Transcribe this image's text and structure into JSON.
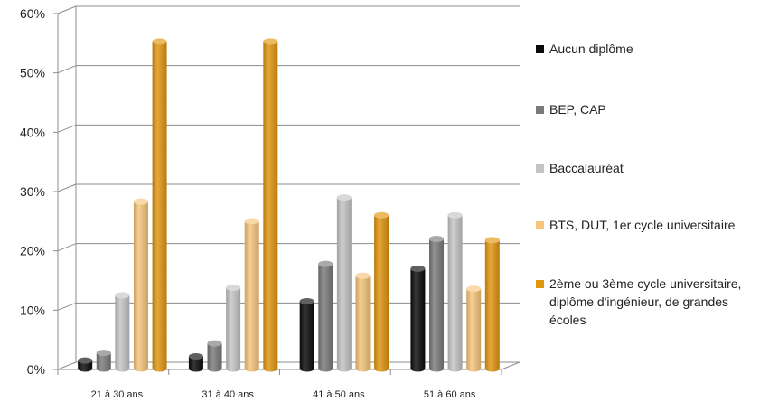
{
  "chart_data": {
    "type": "bar",
    "categories": [
      "21 à 30 ans",
      "31 à 40 ans",
      "41 à 50 ans",
      "51 à 60 ans"
    ],
    "series": [
      {
        "name": "Aucun diplôme",
        "color": "#0a0a0a",
        "values": [
          1.5,
          2.2,
          11.5,
          17
        ]
      },
      {
        "name": "BEP, CAP",
        "color": "#7a7a7a",
        "values": [
          2.8,
          4.4,
          17.8,
          22
        ]
      },
      {
        "name": "Baccalauréat",
        "color": "#c4c4c4",
        "values": [
          12.5,
          13.8,
          29,
          26
        ]
      },
      {
        "name": "BTS, DUT, 1er cycle universitaire",
        "color": "#f5c57a",
        "values": [
          28.3,
          25,
          15.8,
          13.6
        ]
      },
      {
        "name": "2ème ou 3ème cycle universitaire, diplôme d'ingénieur, de grandes écoles",
        "color": "#e0950f",
        "values": [
          55.3,
          55.3,
          26,
          21.8
        ]
      }
    ],
    "yticks": [
      "0%",
      "10%",
      "20%",
      "30%",
      "40%",
      "50%",
      "60%"
    ],
    "ylim": [
      0,
      60
    ],
    "grid": true,
    "legend": "right"
  }
}
